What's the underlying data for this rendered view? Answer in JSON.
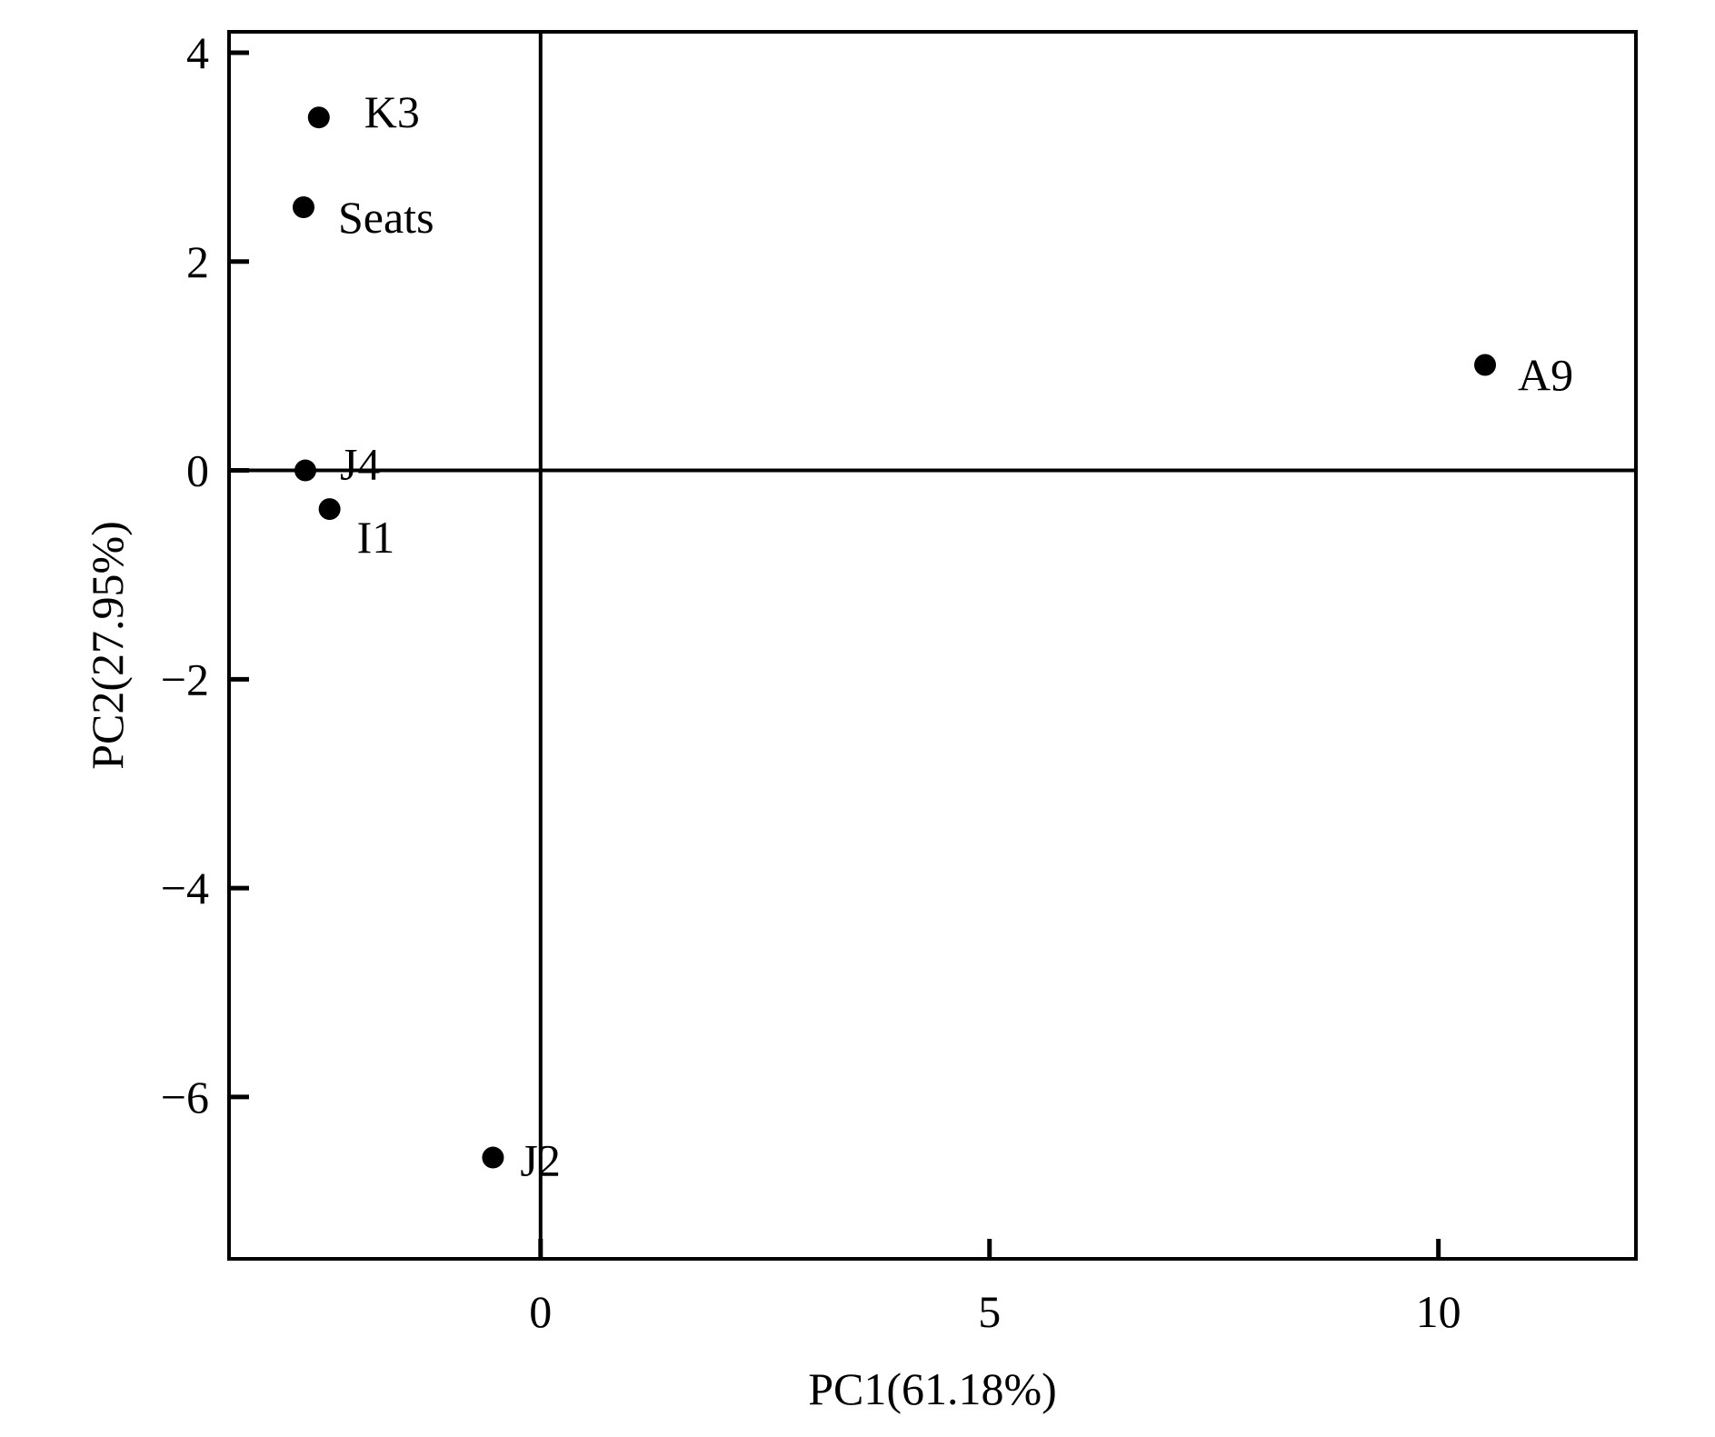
{
  "chart_data": {
    "type": "scatter",
    "title": "",
    "xlabel": "PC1(61.18%)",
    "ylabel": "PC2(27.95%)",
    "xlim": [
      -3.47,
      12.2
    ],
    "ylim": [
      -7.55,
      4.2
    ],
    "xticks": [
      0,
      5,
      10
    ],
    "xtick_labels": [
      "0",
      "5",
      "10"
    ],
    "yticks": [
      4,
      2,
      0,
      -2,
      -4,
      -6
    ],
    "ytick_labels": [
      "4",
      "2",
      "0",
      "−2",
      "−4",
      "−6"
    ],
    "reference_lines": {
      "x": 0,
      "y": 0
    },
    "grid": false,
    "legend": "none",
    "points": [
      {
        "label": "K3",
        "x": -2.47,
        "y": 3.38
      },
      {
        "label": "Seats",
        "x": -2.64,
        "y": 2.52
      },
      {
        "label": "A9",
        "x": 10.52,
        "y": 1.01
      },
      {
        "label": "J4",
        "x": -2.62,
        "y": 0.0
      },
      {
        "label": "I1",
        "x": -2.35,
        "y": -0.37
      },
      {
        "label": "J2",
        "x": -0.53,
        "y": -6.58
      }
    ],
    "marker_color": "#000000"
  }
}
